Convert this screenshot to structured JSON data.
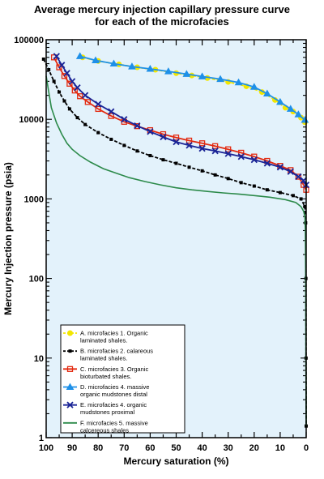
{
  "chart_data": {
    "type": "line",
    "title_lines": [
      "Average mercury injection capillary pressure curve",
      "for each of the microfacies"
    ],
    "xlabel": "Mercury saturation (%)",
    "ylabel": "Mercury Injection pressure (psia)",
    "x_reversed": true,
    "xlim": [
      100,
      0
    ],
    "ylim": [
      1,
      100000
    ],
    "y_scale": "log",
    "x_ticks": [
      "100",
      "90",
      "80",
      "70",
      "60",
      "50",
      "40",
      "30",
      "20",
      "10",
      "0"
    ],
    "y_ticks": [
      "1",
      "10",
      "100",
      "1000",
      "10000",
      "100000"
    ],
    "background_color": "#e3f2fb",
    "legend_position": "lower-left",
    "series": [
      {
        "name_lines": [
          "A. microfacies 1.  Organic",
          "laminated shales."
        ],
        "color": "#f2e600",
        "line_style": "dashed",
        "marker": "circle",
        "points": [
          [
            86,
            60000
          ],
          [
            80,
            54000
          ],
          [
            72,
            49000
          ],
          [
            65,
            45000
          ],
          [
            58,
            42000
          ],
          [
            50,
            38000
          ],
          [
            44,
            35500
          ],
          [
            38,
            33000
          ],
          [
            30,
            29500
          ],
          [
            23,
            26000
          ],
          [
            17,
            22000
          ],
          [
            12,
            17500
          ],
          [
            8,
            14000
          ],
          [
            5,
            12500
          ],
          [
            2,
            10500
          ],
          [
            0.5,
            9200
          ]
        ]
      },
      {
        "name_lines": [
          "B. microfacies 2. calareous",
          "laminated shales."
        ],
        "color": "#000000",
        "line_style": "dashed",
        "marker": "square-small",
        "points": [
          [
            101,
            57000
          ],
          [
            99,
            42000
          ],
          [
            97,
            30000
          ],
          [
            95,
            22000
          ],
          [
            93,
            17000
          ],
          [
            91,
            13500
          ],
          [
            88,
            10500
          ],
          [
            85,
            8600
          ],
          [
            80,
            6800
          ],
          [
            75,
            5600
          ],
          [
            70,
            4700
          ],
          [
            65,
            4000
          ],
          [
            60,
            3500
          ],
          [
            55,
            3100
          ],
          [
            50,
            2800
          ],
          [
            45,
            2500
          ],
          [
            40,
            2250
          ],
          [
            35,
            2000
          ],
          [
            30,
            1800
          ],
          [
            25,
            1600
          ],
          [
            20,
            1450
          ],
          [
            15,
            1300
          ],
          [
            10,
            1200
          ],
          [
            5,
            1100
          ],
          [
            2,
            1000
          ],
          [
            0.5,
            800
          ],
          [
            0.2,
            500
          ],
          [
            0.1,
            100
          ],
          [
            0.05,
            10
          ],
          [
            0,
            1.4
          ]
        ]
      },
      {
        "name_lines": [
          "C. microfacies 3. Organic",
          "bioturbated shales."
        ],
        "color": "#e32a10",
        "line_style": "solid",
        "marker": "square-open",
        "points": [
          [
            97,
            60000
          ],
          [
            95,
            45000
          ],
          [
            93,
            35000
          ],
          [
            91,
            28000
          ],
          [
            89,
            23000
          ],
          [
            87,
            19500
          ],
          [
            84,
            16500
          ],
          [
            80,
            13500
          ],
          [
            75,
            11000
          ],
          [
            70,
            9300
          ],
          [
            65,
            8200
          ],
          [
            60,
            7300
          ],
          [
            55,
            6500
          ],
          [
            50,
            5900
          ],
          [
            45,
            5400
          ],
          [
            40,
            5000
          ],
          [
            35,
            4600
          ],
          [
            30,
            4200
          ],
          [
            25,
            3800
          ],
          [
            20,
            3400
          ],
          [
            15,
            3000
          ],
          [
            10,
            2600
          ],
          [
            6,
            2300
          ],
          [
            3,
            1900
          ],
          [
            1,
            1500
          ],
          [
            0,
            1300
          ]
        ]
      },
      {
        "name_lines": [
          "D. microfacies 4. massive",
          "organic mudstones distal"
        ],
        "color": "#1e90e8",
        "line_style": "solid",
        "marker": "triangle",
        "points": [
          [
            87,
            62000
          ],
          [
            81,
            55000
          ],
          [
            74,
            50000
          ],
          [
            67,
            46000
          ],
          [
            60,
            43000
          ],
          [
            53,
            40000
          ],
          [
            46,
            37000
          ],
          [
            40,
            34500
          ],
          [
            33,
            32000
          ],
          [
            26,
            29000
          ],
          [
            20,
            25500
          ],
          [
            15,
            21000
          ],
          [
            10,
            16500
          ],
          [
            6,
            13500
          ],
          [
            3,
            11500
          ],
          [
            0.5,
            9800
          ]
        ]
      },
      {
        "name_lines": [
          "E. microfacies 4. organic",
          "mudstones proximal"
        ],
        "color": "#1a2496",
        "line_style": "solid",
        "marker": "x",
        "points": [
          [
            96,
            62000
          ],
          [
            94,
            48000
          ],
          [
            92,
            38000
          ],
          [
            90,
            30000
          ],
          [
            88,
            25000
          ],
          [
            85,
            20000
          ],
          [
            80,
            15500
          ],
          [
            75,
            12500
          ],
          [
            70,
            10000
          ],
          [
            65,
            8300
          ],
          [
            60,
            7000
          ],
          [
            55,
            6000
          ],
          [
            50,
            5200
          ],
          [
            45,
            4700
          ],
          [
            40,
            4300
          ],
          [
            35,
            4000
          ],
          [
            30,
            3700
          ],
          [
            25,
            3400
          ],
          [
            20,
            3100
          ],
          [
            15,
            2800
          ],
          [
            10,
            2500
          ],
          [
            6,
            2200
          ],
          [
            3,
            1900
          ],
          [
            1,
            1700
          ],
          [
            0,
            1500
          ]
        ]
      },
      {
        "name_lines": [
          "F. microfacies 5. massive",
          "calcereous shales"
        ],
        "color": "#2c8a4a",
        "line_style": "solid",
        "marker": "none",
        "points": [
          [
            100,
            35000
          ],
          [
            99,
            22000
          ],
          [
            98,
            14000
          ],
          [
            96,
            9000
          ],
          [
            94,
            6500
          ],
          [
            92,
            5000
          ],
          [
            90,
            4200
          ],
          [
            87,
            3500
          ],
          [
            83,
            2900
          ],
          [
            78,
            2400
          ],
          [
            73,
            2100
          ],
          [
            68,
            1850
          ],
          [
            62,
            1650
          ],
          [
            56,
            1500
          ],
          [
            50,
            1380
          ],
          [
            44,
            1300
          ],
          [
            38,
            1240
          ],
          [
            32,
            1190
          ],
          [
            26,
            1150
          ],
          [
            20,
            1100
          ],
          [
            14,
            1050
          ],
          [
            8,
            980
          ],
          [
            4,
            900
          ],
          [
            2,
            800
          ],
          [
            1,
            700
          ],
          [
            0.5,
            600
          ],
          [
            0.3,
            400
          ],
          [
            0.2,
            100
          ],
          [
            0.1,
            10
          ],
          [
            0,
            1.4
          ]
        ]
      }
    ]
  }
}
